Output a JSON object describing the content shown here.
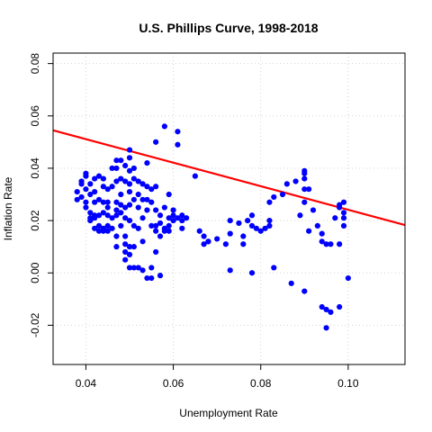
{
  "chart_data": {
    "type": "scatter",
    "title": "U.S. Phillips Curve, 1998-2018",
    "xlabel": "Unemployment Rate",
    "ylabel": "Inflation Rate",
    "xlim": [
      0.0325,
      0.113
    ],
    "ylim": [
      -0.035,
      0.084
    ],
    "xticks": [
      0.04,
      0.06,
      0.08,
      0.1
    ],
    "xtick_labels": [
      "0.04",
      "0.06",
      "0.08",
      "0.10"
    ],
    "yticks": [
      -0.02,
      0.0,
      0.02,
      0.04,
      0.06,
      0.08
    ],
    "ytick_labels": [
      "-0.02",
      "0.00",
      "0.02",
      "0.04",
      "0.06",
      "0.08"
    ],
    "grid": true,
    "grid_style": "dotted",
    "point_color": "#0000ff",
    "line_color": "#ff0000",
    "points": [
      [
        0.038,
        0.031
      ],
      [
        0.038,
        0.028
      ],
      [
        0.039,
        0.035
      ],
      [
        0.039,
        0.034
      ],
      [
        0.039,
        0.029
      ],
      [
        0.04,
        0.038
      ],
      [
        0.04,
        0.037
      ],
      [
        0.04,
        0.032
      ],
      [
        0.04,
        0.027
      ],
      [
        0.04,
        0.025
      ],
      [
        0.041,
        0.034
      ],
      [
        0.041,
        0.03
      ],
      [
        0.041,
        0.023
      ],
      [
        0.041,
        0.021
      ],
      [
        0.041,
        0.02
      ],
      [
        0.042,
        0.036
      ],
      [
        0.042,
        0.031
      ],
      [
        0.042,
        0.027
      ],
      [
        0.042,
        0.022
      ],
      [
        0.042,
        0.021
      ],
      [
        0.042,
        0.017
      ],
      [
        0.043,
        0.037
      ],
      [
        0.043,
        0.028
      ],
      [
        0.043,
        0.022
      ],
      [
        0.043,
        0.018
      ],
      [
        0.043,
        0.016
      ],
      [
        0.044,
        0.036
      ],
      [
        0.044,
        0.033
      ],
      [
        0.044,
        0.027
      ],
      [
        0.044,
        0.023
      ],
      [
        0.044,
        0.017
      ],
      [
        0.044,
        0.016
      ],
      [
        0.045,
        0.032
      ],
      [
        0.045,
        0.027
      ],
      [
        0.045,
        0.025
      ],
      [
        0.045,
        0.022
      ],
      [
        0.045,
        0.018
      ],
      [
        0.045,
        0.016
      ],
      [
        0.046,
        0.04
      ],
      [
        0.046,
        0.033
      ],
      [
        0.046,
        0.021
      ],
      [
        0.046,
        0.017
      ],
      [
        0.047,
        0.043
      ],
      [
        0.047,
        0.04
      ],
      [
        0.047,
        0.035
      ],
      [
        0.047,
        0.027
      ],
      [
        0.047,
        0.024
      ],
      [
        0.047,
        0.022
      ],
      [
        0.047,
        0.014
      ],
      [
        0.047,
        0.01
      ],
      [
        0.048,
        0.043
      ],
      [
        0.048,
        0.036
      ],
      [
        0.048,
        0.03
      ],
      [
        0.048,
        0.026
      ],
      [
        0.048,
        0.023
      ],
      [
        0.048,
        0.018
      ],
      [
        0.049,
        0.041
      ],
      [
        0.049,
        0.035
      ],
      [
        0.049,
        0.025
      ],
      [
        0.049,
        0.021
      ],
      [
        0.049,
        0.014
      ],
      [
        0.049,
        0.011
      ],
      [
        0.049,
        0.008
      ],
      [
        0.049,
        0.005
      ],
      [
        0.05,
        0.047
      ],
      [
        0.05,
        0.044
      ],
      [
        0.05,
        0.039
      ],
      [
        0.05,
        0.034
      ],
      [
        0.05,
        0.031
      ],
      [
        0.05,
        0.026
      ],
      [
        0.05,
        0.02
      ],
      [
        0.05,
        0.01
      ],
      [
        0.05,
        0.007
      ],
      [
        0.05,
        0.002
      ],
      [
        0.051,
        0.04
      ],
      [
        0.051,
        0.036
      ],
      [
        0.051,
        0.028
      ],
      [
        0.051,
        0.018
      ],
      [
        0.051,
        0.01
      ],
      [
        0.051,
        0.002
      ],
      [
        0.052,
        0.035
      ],
      [
        0.052,
        0.03
      ],
      [
        0.052,
        0.025
      ],
      [
        0.052,
        0.017
      ],
      [
        0.052,
        0.002
      ],
      [
        0.053,
        0.034
      ],
      [
        0.053,
        0.028
      ],
      [
        0.053,
        0.021
      ],
      [
        0.053,
        0.012
      ],
      [
        0.053,
        0.001
      ],
      [
        0.054,
        0.042
      ],
      [
        0.054,
        0.033
      ],
      [
        0.054,
        0.028
      ],
      [
        0.054,
        0.024
      ],
      [
        0.054,
        -0.002
      ],
      [
        0.055,
        0.032
      ],
      [
        0.055,
        0.027
      ],
      [
        0.055,
        0.018
      ],
      [
        0.055,
        0.002
      ],
      [
        0.055,
        -0.002
      ],
      [
        0.056,
        0.05
      ],
      [
        0.056,
        0.033
      ],
      [
        0.056,
        0.024
      ],
      [
        0.056,
        0.018
      ],
      [
        0.056,
        0.016
      ],
      [
        0.056,
        0.008
      ],
      [
        0.057,
        0.022
      ],
      [
        0.057,
        0.019
      ],
      [
        0.057,
        0.014
      ],
      [
        0.057,
        -0.001
      ],
      [
        0.058,
        0.056
      ],
      [
        0.058,
        0.025
      ],
      [
        0.058,
        0.017
      ],
      [
        0.058,
        0.016
      ],
      [
        0.059,
        0.03
      ],
      [
        0.059,
        0.021
      ],
      [
        0.059,
        0.018
      ],
      [
        0.059,
        0.016
      ],
      [
        0.06,
        0.024
      ],
      [
        0.06,
        0.022
      ],
      [
        0.06,
        0.02
      ],
      [
        0.061,
        0.054
      ],
      [
        0.061,
        0.049
      ],
      [
        0.061,
        0.021
      ],
      [
        0.062,
        0.022
      ],
      [
        0.062,
        0.02
      ],
      [
        0.062,
        0.017
      ],
      [
        0.063,
        0.021
      ],
      [
        0.065,
        0.037
      ],
      [
        0.066,
        0.016
      ],
      [
        0.067,
        0.014
      ],
      [
        0.067,
        0.011
      ],
      [
        0.068,
        0.012
      ],
      [
        0.068,
        0.012
      ],
      [
        0.07,
        0.013
      ],
      [
        0.072,
        0.011
      ],
      [
        0.073,
        0.02
      ],
      [
        0.073,
        0.015
      ],
      [
        0.073,
        0.001
      ],
      [
        0.075,
        0.019
      ],
      [
        0.076,
        0.014
      ],
      [
        0.076,
        0.011
      ],
      [
        0.077,
        0.02
      ],
      [
        0.078,
        0.018
      ],
      [
        0.078,
        0.022
      ],
      [
        0.078,
        0.0
      ],
      [
        0.079,
        0.017
      ],
      [
        0.08,
        0.016
      ],
      [
        0.081,
        0.017
      ],
      [
        0.082,
        0.027
      ],
      [
        0.082,
        0.018
      ],
      [
        0.082,
        0.02
      ],
      [
        0.083,
        0.029
      ],
      [
        0.083,
        0.002
      ],
      [
        0.085,
        0.03
      ],
      [
        0.086,
        0.034
      ],
      [
        0.087,
        -0.004
      ],
      [
        0.088,
        0.035
      ],
      [
        0.089,
        0.022
      ],
      [
        0.09,
        0.039
      ],
      [
        0.09,
        0.038
      ],
      [
        0.09,
        0.036
      ],
      [
        0.09,
        0.032
      ],
      [
        0.09,
        0.027
      ],
      [
        0.09,
        -0.007
      ],
      [
        0.091,
        0.032
      ],
      [
        0.091,
        0.016
      ],
      [
        0.092,
        0.024
      ],
      [
        0.093,
        0.018
      ],
      [
        0.094,
        0.015
      ],
      [
        0.094,
        0.012
      ],
      [
        0.094,
        -0.013
      ],
      [
        0.095,
        0.011
      ],
      [
        0.095,
        -0.014
      ],
      [
        0.095,
        -0.021
      ],
      [
        0.096,
        0.011
      ],
      [
        0.096,
        -0.015
      ],
      [
        0.097,
        0.021
      ],
      [
        0.098,
        0.026
      ],
      [
        0.098,
        0.025
      ],
      [
        0.098,
        0.011
      ],
      [
        0.098,
        -0.013
      ],
      [
        0.099,
        0.027
      ],
      [
        0.099,
        0.023
      ],
      [
        0.099,
        0.021
      ],
      [
        0.099,
        0.018
      ],
      [
        0.1,
        -0.002
      ]
    ],
    "fit_line": {
      "x_start": 0.0325,
      "y_start": 0.0545,
      "x_end": 0.113,
      "y_end": 0.0183
    }
  }
}
